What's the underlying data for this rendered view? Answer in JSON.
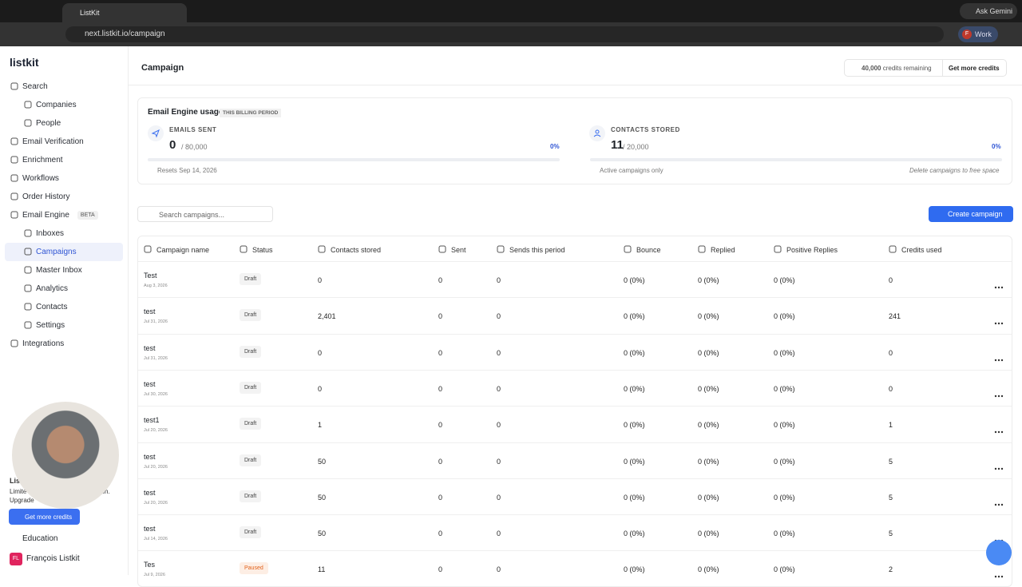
{
  "browser": {
    "tab_title": "ListKit",
    "url": "next.listkit.io/campaign",
    "gemini": "Ask Gemini",
    "profile_initial": "F",
    "profile": "Work"
  },
  "sidebar": {
    "logo": "listkit",
    "nav": [
      {
        "label": "Search",
        "children": [
          {
            "label": "Companies"
          },
          {
            "label": "People"
          }
        ]
      },
      {
        "label": "Email Verification"
      },
      {
        "label": "Enrichment"
      },
      {
        "label": "Workflows"
      },
      {
        "label": "Order History"
      },
      {
        "label": "Email Engine",
        "badge": "BETA",
        "children": [
          {
            "label": "Inboxes"
          },
          {
            "label": "Campaigns",
            "active": true
          },
          {
            "label": "Master Inbox"
          },
          {
            "label": "Analytics"
          },
          {
            "label": "Contacts"
          },
          {
            "label": "Settings"
          }
        ]
      },
      {
        "label": "Integrations"
      }
    ],
    "promo": {
      "title": "Lis",
      "line1_start": "Limite",
      "line1_end": "ch.",
      "line2": "Upgrade",
      "button": "Get more credits"
    },
    "education": "Education",
    "user_initials": "FL",
    "user_name": "François Listkit"
  },
  "header": {
    "title": "Campaign",
    "credits": "40,000",
    "credits_label": "credits remaining",
    "button": "Get more credits"
  },
  "usage": {
    "title": "Email Engine usage",
    "period": "THIS BILLING PERIOD",
    "emails": {
      "label": "EMAILS SENT",
      "value": "0",
      "limit": "/ 80,000",
      "percent": "0%",
      "note": "Resets Sep 14, 2026"
    },
    "contacts": {
      "label": "CONTACTS STORED",
      "value": "11",
      "limit": "/ 20,000",
      "percent": "0%",
      "note": "Active campaigns only",
      "hint": "Delete campaigns to free space"
    }
  },
  "toolbar": {
    "search_placeholder": "Search campaigns...",
    "create_button": "Create campaign"
  },
  "table": {
    "columns": [
      "Campaign name",
      "Status",
      "Contacts stored",
      "Sent",
      "Sends this period",
      "Bounce",
      "Replied",
      "Positive Replies",
      "Credits used"
    ],
    "rows": [
      [
        "Test",
        "Aug 3, 2026",
        "Draft",
        "0",
        "0",
        "0",
        "0 (0%)",
        "0 (0%)",
        "0 (0%)",
        "0"
      ],
      [
        "test",
        "Jul 31, 2026",
        "Draft",
        "2,401",
        "0",
        "0",
        "0 (0%)",
        "0 (0%)",
        "0 (0%)",
        "241"
      ],
      [
        "test",
        "Jul 31, 2026",
        "Draft",
        "0",
        "0",
        "0",
        "0 (0%)",
        "0 (0%)",
        "0 (0%)",
        "0"
      ],
      [
        "test",
        "Jul 30, 2026",
        "Draft",
        "0",
        "0",
        "0",
        "0 (0%)",
        "0 (0%)",
        "0 (0%)",
        "0"
      ],
      [
        "test1",
        "Jul 20, 2026",
        "Draft",
        "1",
        "0",
        "0",
        "0 (0%)",
        "0 (0%)",
        "0 (0%)",
        "1"
      ],
      [
        "test",
        "Jul 20, 2026",
        "Draft",
        "50",
        "0",
        "0",
        "0 (0%)",
        "0 (0%)",
        "0 (0%)",
        "5"
      ],
      [
        "test",
        "Jul 20, 2026",
        "Draft",
        "50",
        "0",
        "0",
        "0 (0%)",
        "0 (0%)",
        "0 (0%)",
        "5"
      ],
      [
        "test",
        "Jul 14, 2026",
        "Draft",
        "50",
        "0",
        "0",
        "0 (0%)",
        "0 (0%)",
        "0 (0%)",
        "5"
      ],
      [
        "Tes",
        "Jul 9, 2026",
        "Paused",
        "11",
        "0",
        "0",
        "0 (0%)",
        "0 (0%)",
        "0 (0%)",
        "2"
      ]
    ]
  }
}
